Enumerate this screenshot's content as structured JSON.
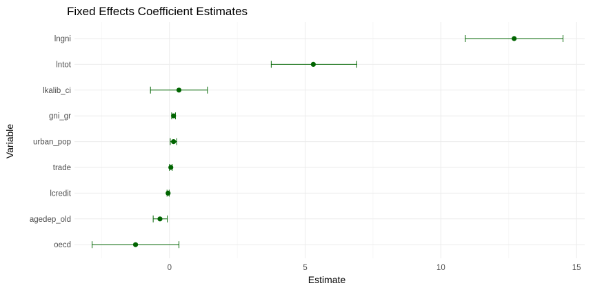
{
  "chart_data": {
    "type": "scatter",
    "title": "Fixed Effects Coefficient Estimates",
    "xlabel": "Estimate",
    "ylabel": "Variable",
    "xlim": [
      -3.5,
      15.3
    ],
    "x_ticks": [
      0,
      5,
      10,
      15
    ],
    "x_tick_labels": [
      "0",
      "5",
      "10",
      "15"
    ],
    "grid": true,
    "color": "#006400",
    "variables": [
      {
        "name": "lngni",
        "estimate": 12.7,
        "ci_low": 10.9,
        "ci_high": 14.5
      },
      {
        "name": "lntot",
        "estimate": 5.3,
        "ci_low": 3.75,
        "ci_high": 6.9
      },
      {
        "name": "lkalib_ci",
        "estimate": 0.35,
        "ci_low": -0.7,
        "ci_high": 1.4
      },
      {
        "name": "gni_gr",
        "estimate": 0.15,
        "ci_low": 0.08,
        "ci_high": 0.22
      },
      {
        "name": "urban_pop",
        "estimate": 0.15,
        "ci_low": 0.03,
        "ci_high": 0.27
      },
      {
        "name": "trade",
        "estimate": 0.05,
        "ci_low": 0.0,
        "ci_high": 0.1
      },
      {
        "name": "lcredit",
        "estimate": -0.05,
        "ci_low": -0.09,
        "ci_high": -0.01
      },
      {
        "name": "agedep_old",
        "estimate": -0.35,
        "ci_low": -0.6,
        "ci_high": -0.08
      },
      {
        "name": "oecd",
        "estimate": -1.25,
        "ci_low": -2.85,
        "ci_high": 0.35
      }
    ]
  }
}
